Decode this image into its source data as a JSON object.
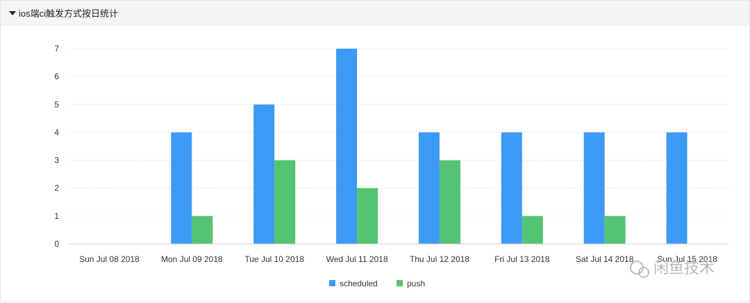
{
  "panel": {
    "title": "ios端ci触发方式按日统计"
  },
  "watermark": {
    "text": "闲鱼技术"
  },
  "colors": {
    "scheduled": "#3d9af4",
    "push": "#55c472",
    "grid": "#e6e6e6",
    "axis": "#cccccc"
  },
  "chart_data": {
    "type": "bar",
    "categories": [
      "Sun Jul 08 2018",
      "Mon Jul 09 2018",
      "Tue Jul 10 2018",
      "Wed Jul 11 2018",
      "Thu Jul 12 2018",
      "Fri Jul 13 2018",
      "Sat Jul 14 2018",
      "Sun Jul 15 2018"
    ],
    "series": [
      {
        "name": "scheduled",
        "values": [
          0,
          4,
          5,
          7,
          4,
          4,
          4,
          4
        ]
      },
      {
        "name": "push",
        "values": [
          0,
          1,
          3,
          2,
          3,
          1,
          1,
          0
        ]
      }
    ],
    "yticks": [
      0,
      1,
      2,
      3,
      4,
      5,
      6,
      7
    ],
    "ylim": [
      0,
      7
    ],
    "grid": true,
    "legend": "bottom-center"
  }
}
